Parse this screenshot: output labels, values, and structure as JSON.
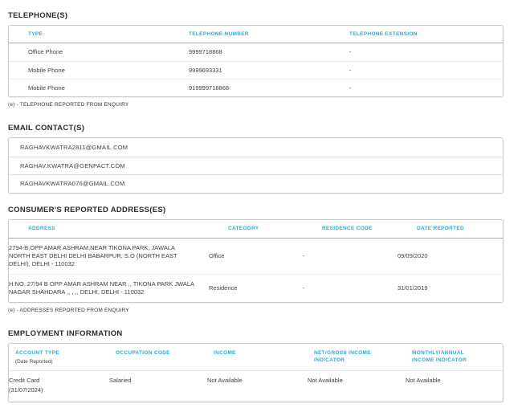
{
  "accent_color": "#29abd2",
  "telephones": {
    "heading": "TELEPHONE(S)",
    "columns": {
      "type": "TYPE",
      "number": "TELEPHONE NUMBER",
      "extension": "TELEPHONE EXTENSION"
    },
    "rows": [
      {
        "type": "Office Phone",
        "number": "9999718868",
        "extension": "-"
      },
      {
        "type": "Mobile Phone",
        "number": "9999693331",
        "extension": "-"
      },
      {
        "type": "Mobile Phone",
        "number": "919999718868",
        "extension": "-"
      }
    ],
    "footnote": "(e) - TELEPHONE REPORTED FROM ENQUIRY"
  },
  "emails": {
    "heading": "EMAIL CONTACT(S)",
    "items": [
      "RAGHAVKWATRA2811@GMAIL.COM",
      "RAGHAV.KWATRA@GENPACT.COM",
      "RAGHAVKWATRA076@GMAIL.COM"
    ]
  },
  "addresses": {
    "heading": "CONSUMER'S REPORTED ADDRESS(ES)",
    "columns": {
      "address": "ADDRESS",
      "category": "CATEGORY",
      "residence_code": "RESIDENCE CODE",
      "date_reported": "DATE REPORTED"
    },
    "rows": [
      {
        "address": "2794-B,OPP AMAR ASHRAM,NEAR TIKONA PARK, JAWALA NORTH EAST DELHI DELHI BABARPUR, S.O (NORTH EAST DELHI), DELHI - 110032",
        "category": "Office",
        "residence_code": "-",
        "date_reported": "09/09/2020"
      },
      {
        "address": "H.NO. 27/94 B OPP AMAR ASHRAM NEAR ,, TIKONA PARK JWALA NAGAR SHAHDARA ,, , ,, DELHI, DELHI - 110032",
        "category": "Residence",
        "residence_code": "-",
        "date_reported": "31/01/2019"
      }
    ],
    "footnote": "(e) - ADDRESSES REPORTED FROM ENQUIRY"
  },
  "employment": {
    "heading": "EMPLOYMENT INFORMATION",
    "columns": {
      "account_type": "ACCOUNT TYPE",
      "account_type_sub": "(Date Reported)",
      "occupation_code": "OCCUPATION CODE",
      "income": "INCOME",
      "net_gross": "NET/GROSS INCOME INDICATOR",
      "monthly_annual": "MONTHLY/ANNUAL INCOME INDICATOR"
    },
    "rows": [
      {
        "account_type": "Credit Card",
        "date_reported": "(31/07/2024)",
        "occupation_code": "Salaried",
        "income": "Not Available",
        "net_gross": "Not Available",
        "monthly_annual": "Not Available"
      }
    ]
  }
}
